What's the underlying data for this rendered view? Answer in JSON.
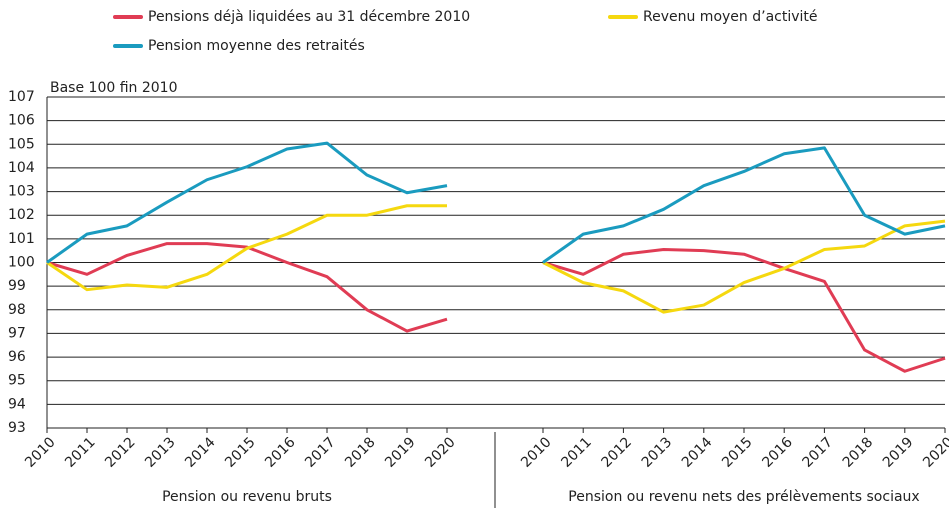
{
  "chart_data": [
    {
      "type": "line",
      "ylabel": "Base 100 fin 2010",
      "xlabel": "Pension ou revenu bruts",
      "ylim": [
        93,
        107
      ],
      "yticks": [
        93,
        94,
        95,
        96,
        97,
        98,
        99,
        100,
        101,
        102,
        103,
        104,
        105,
        106,
        107
      ],
      "grid": true,
      "categories": [
        "2010",
        "2011",
        "2012",
        "2013",
        "2014",
        "2015",
        "2016",
        "2017",
        "2018",
        "2019",
        "2020"
      ],
      "series": [
        {
          "name": "Pensions déjà liquidées au 31 décembre 2010",
          "color": "#e03c54",
          "values": [
            100,
            99.5,
            100.3,
            100.8,
            100.8,
            100.65,
            100.0,
            99.4,
            98.0,
            97.1,
            97.6
          ]
        },
        {
          "name": "Revenu moyen d’activité",
          "color": "#f5d80f",
          "values": [
            100,
            98.85,
            99.05,
            98.95,
            99.5,
            100.6,
            101.2,
            102.0,
            102.0,
            102.4,
            102.4
          ]
        },
        {
          "name": "Pension moyenne des retraités",
          "color": "#1a9bbf",
          "values": [
            100,
            101.2,
            101.55,
            102.55,
            103.5,
            104.05,
            104.8,
            105.05,
            103.7,
            102.95,
            103.25
          ]
        }
      ]
    },
    {
      "type": "line",
      "xlabel": "Pension ou revenu nets des prélèvements sociaux",
      "ylim": [
        93,
        107
      ],
      "categories": [
        "2010",
        "2011",
        "2012",
        "2013",
        "2014",
        "2015",
        "2016",
        "2017",
        "2018",
        "2019",
        "2020"
      ],
      "series": [
        {
          "color": "#e03c54",
          "values": [
            100,
            99.5,
            100.35,
            100.55,
            100.5,
            100.35,
            99.75,
            99.2,
            96.3,
            95.4,
            95.95
          ]
        },
        {
          "color": "#f5d80f",
          "values": [
            100,
            99.15,
            98.8,
            97.9,
            98.2,
            99.15,
            99.75,
            100.55,
            100.7,
            101.55,
            101.75
          ]
        },
        {
          "color": "#1a9bbf",
          "values": [
            100,
            101.2,
            101.55,
            102.25,
            103.25,
            103.85,
            104.6,
            104.85,
            102.0,
            101.2,
            101.55
          ]
        }
      ]
    }
  ]
}
